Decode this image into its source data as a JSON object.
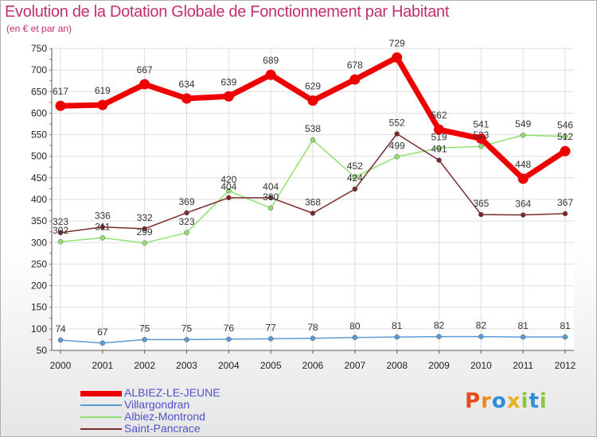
{
  "title": "Evolution de la Dotation Globale de Fonctionnement par Habitant",
  "subtitle": "(en € et par an)",
  "logo": {
    "letters": [
      "P",
      "r",
      "o",
      "x",
      "i",
      "t",
      "i"
    ],
    "colors": [
      "#e84a1b",
      "#f08a1c",
      "#2e8fd8",
      "#e8b21b",
      "#8cc63e",
      "#2e8fd8",
      "#8cc63e"
    ]
  },
  "chart_data": {
    "type": "line",
    "title": "Evolution de la Dotation Globale de Fonctionnement par Habitant",
    "subtitle": "(en € et par an)",
    "x": [
      "2000",
      "2001",
      "2002",
      "2003",
      "2004",
      "2005",
      "2006",
      "2007",
      "2008",
      "2009",
      "2010",
      "2011",
      "2012"
    ],
    "ylim": [
      50,
      750
    ],
    "yticks": [
      50,
      100,
      150,
      200,
      250,
      300,
      350,
      400,
      450,
      500,
      550,
      600,
      650,
      700,
      750
    ],
    "grid": true,
    "legend_position": "bottom-left",
    "series": [
      {
        "name": "ALBIEZ-LE-JEUNE",
        "color": "#ee0000",
        "values": [
          617,
          619,
          667,
          634,
          639,
          689,
          629,
          678,
          729,
          562,
          541,
          448,
          512
        ]
      },
      {
        "name": "Villargondran",
        "color": "#5b9bd5",
        "values": [
          74,
          67,
          75,
          75,
          76,
          77,
          78,
          80,
          81,
          82,
          82,
          81,
          81
        ]
      },
      {
        "name": "Albiez-Montrond",
        "color": "#90e070",
        "values": [
          302,
          311,
          299,
          323,
          420,
          380,
          538,
          452,
          499,
          519,
          523,
          549,
          546
        ]
      },
      {
        "name": "Saint-Pancrace",
        "color": "#7a2a2a",
        "values": [
          323,
          336,
          332,
          369,
          404,
          404,
          368,
          424,
          552,
          491,
          365,
          364,
          367
        ]
      }
    ]
  }
}
